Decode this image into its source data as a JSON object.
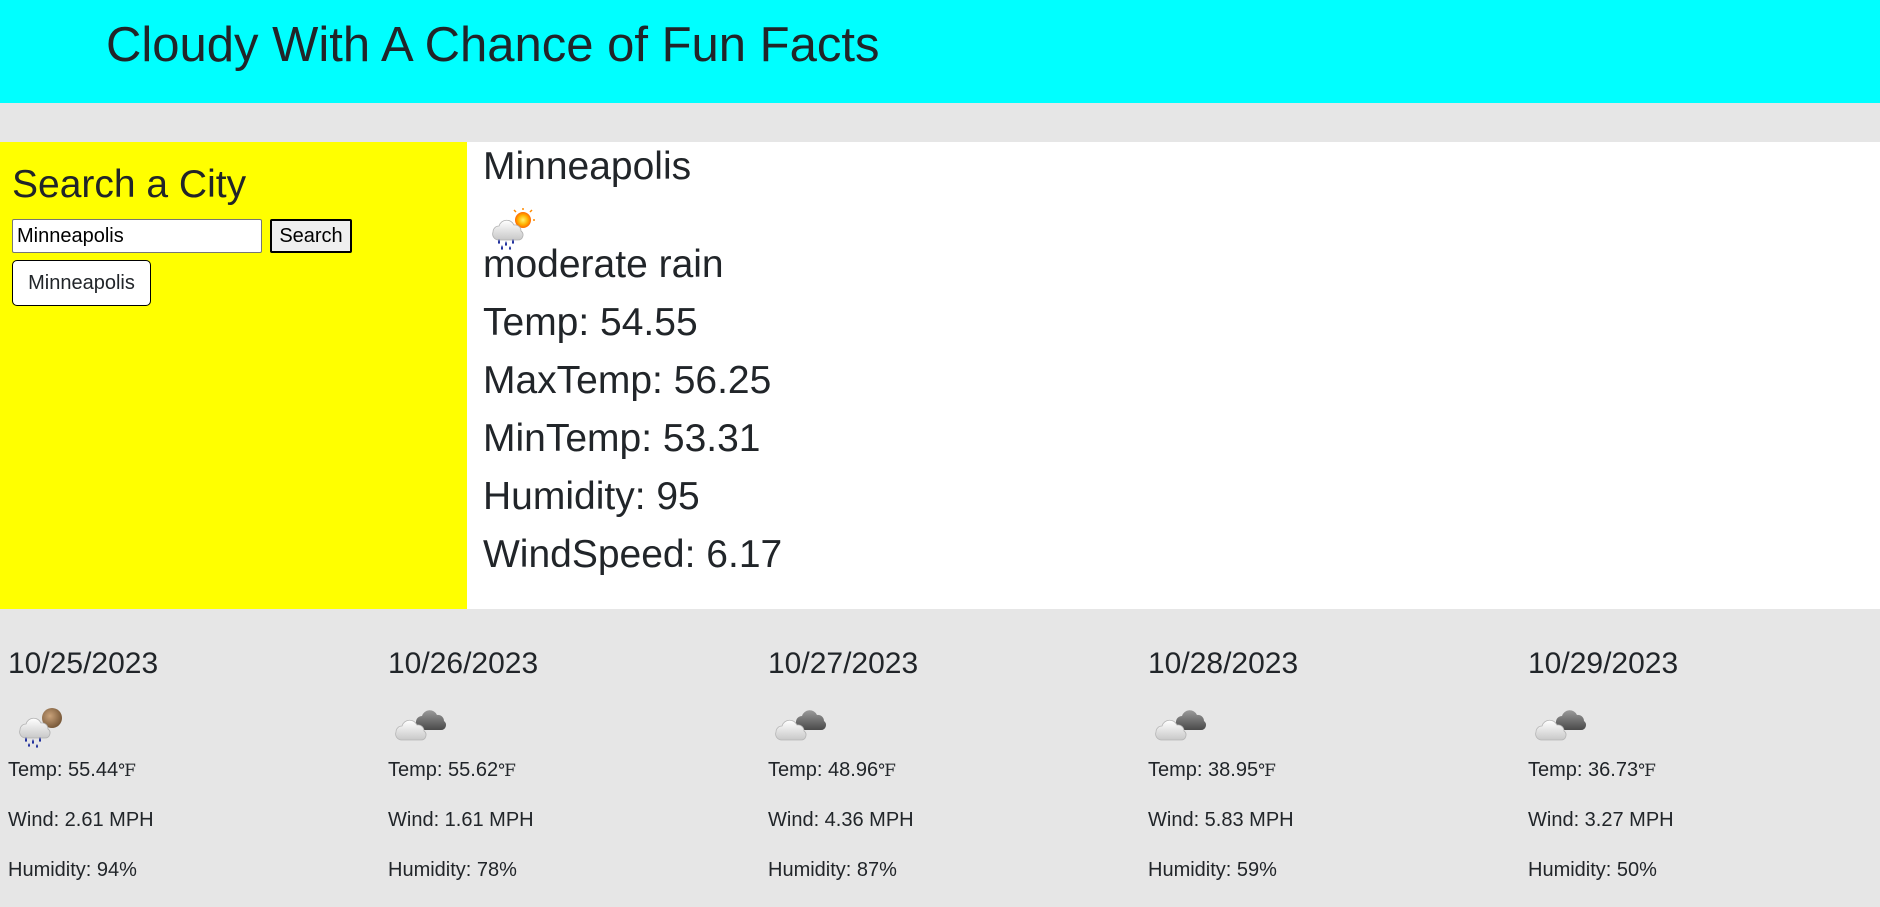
{
  "header": {
    "title": "Cloudy With A Chance of Fun Facts"
  },
  "search": {
    "title": "Search a City",
    "input_value": "Minneapolis",
    "button_label": "Search",
    "history": [
      "Minneapolis"
    ]
  },
  "current": {
    "city": "Minneapolis",
    "icon": "moderate-rain-icon",
    "description": "moderate rain",
    "temp": "Temp: 54.55",
    "max_temp": "MaxTemp: 56.25",
    "min_temp": "MinTemp: 53.31",
    "humidity": "Humidity: 95",
    "wind_speed": "WindSpeed: 6.17"
  },
  "forecast": [
    {
      "date": "10/25/2023",
      "icon": "rain-night-icon",
      "temp": "Temp: 55.44",
      "unit": "℉",
      "wind": "Wind: 2.61 MPH",
      "humidity": "Humidity: 94%"
    },
    {
      "date": "10/26/2023",
      "icon": "broken-clouds-icon",
      "temp": "Temp: 55.62",
      "unit": "℉",
      "wind": "Wind: 1.61 MPH",
      "humidity": "Humidity: 78%"
    },
    {
      "date": "10/27/2023",
      "icon": "broken-clouds-icon",
      "temp": "Temp: 48.96",
      "unit": "℉",
      "wind": "Wind: 4.36 MPH",
      "humidity": "Humidity: 87%"
    },
    {
      "date": "10/28/2023",
      "icon": "broken-clouds-icon",
      "temp": "Temp: 38.95",
      "unit": "℉",
      "wind": "Wind: 5.83 MPH",
      "humidity": "Humidity: 59%"
    },
    {
      "date": "10/29/2023",
      "icon": "broken-clouds-icon",
      "temp": "Temp: 36.73",
      "unit": "℉",
      "wind": "Wind: 3.27 MPH",
      "humidity": "Humidity: 50%"
    }
  ],
  "colors": {
    "header_bg": "#00ffff",
    "sidebar_bg": "#ffff00",
    "page_bg": "#e6e6e6",
    "current_bg": "#ffffff"
  }
}
